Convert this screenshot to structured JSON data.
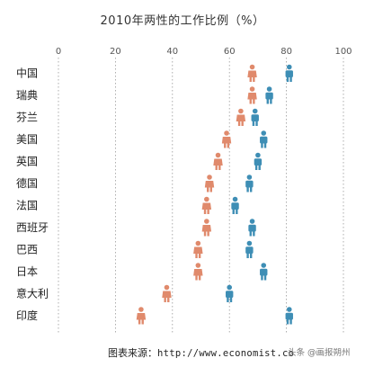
{
  "chart_data": {
    "type": "dot",
    "title": "2010年两性的工作比例（%）",
    "xlim": [
      0,
      100
    ],
    "x_ticks": [
      "0",
      "20",
      "40",
      "60",
      "80",
      "100"
    ],
    "grid": "dashed vertical",
    "categories": [
      "中国",
      "瑞典",
      "芬兰",
      "美国",
      "英国",
      "德国",
      "法国",
      "西班牙",
      "巴西",
      "日本",
      "意大利",
      "印度"
    ],
    "series": [
      {
        "color": "#E08A6C",
        "icon": "female-figure-icon",
        "values": [
          68,
          68,
          64,
          59,
          56,
          53,
          52,
          52,
          49,
          49,
          38,
          29
        ]
      },
      {
        "color": "#3E8EB5",
        "icon": "male-figure-icon",
        "values": [
          81,
          74,
          69,
          72,
          70,
          67,
          62,
          68,
          67,
          72,
          60,
          81
        ]
      }
    ]
  },
  "footer": {
    "source_label": "图表来源：",
    "source_url": "http://www.economist.co",
    "watermark": "头条 @画报朔州"
  }
}
